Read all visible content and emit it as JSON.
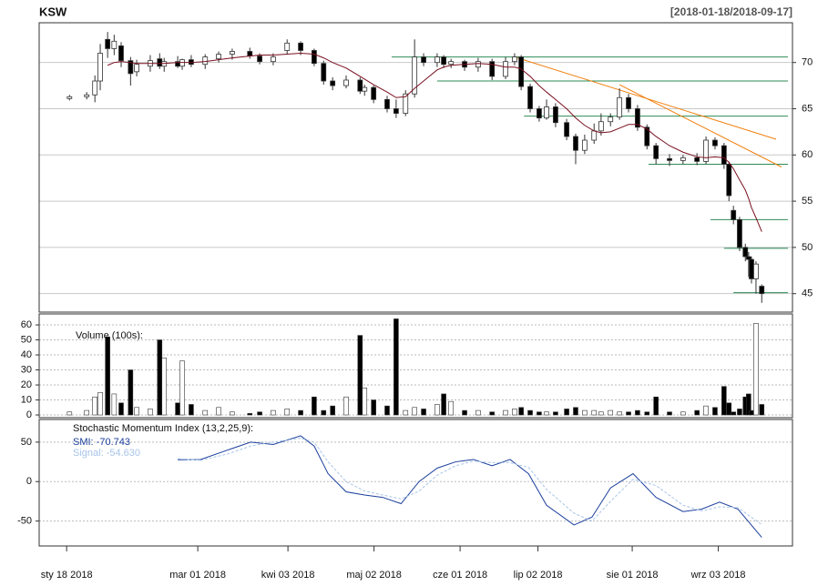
{
  "chart_data": [
    {
      "type": "candlestick",
      "title": "KSW",
      "subtitle": "[2018-01-18/2018-09-17]",
      "x": [
        0.7,
        4.9,
        6.9,
        8.2,
        10.0,
        11.6,
        13.3,
        15.6,
        17.1,
        20.4,
        22.7,
        23.8,
        27.1,
        28.2,
        30.4,
        33.8,
        37.1,
        40.4,
        44.7,
        47.1,
        50.4,
        53.8,
        57.1,
        60.4,
        62.7,
        64.9,
        68.2,
        71.6,
        72.7,
        74.9,
        78.2,
        80.4,
        82.7,
        84.9,
        87.1,
        90.4,
        92.0,
        93.8,
        97.1,
        100.4,
        103.8,
        107.1,
        109.3,
        110.9,
        113.1,
        115.3,
        117.1,
        119.3,
        122.0,
        124.2,
        126.4,
        128.7,
        130.4,
        132.7,
        134.9,
        137.1,
        139.3,
        141.6,
        143.8,
        147.1,
        150.4,
        153.8,
        156.0,
        158.2,
        160.4,
        161.6,
        162.7,
        164.2,
        165.6,
        166.4,
        167.1,
        168.2,
        169.6
      ],
      "open": [
        66.1,
        66.3,
        66.5,
        68.0,
        72.5,
        71.5,
        71.8,
        70.2,
        69.0,
        69.6,
        70.4,
        69.6,
        70.1,
        69.6,
        70.3,
        69.8,
        70.4,
        70.9,
        71.2,
        70.7,
        70.1,
        71.3,
        72.1,
        71.3,
        69.9,
        68.0,
        67.5,
        68.1,
        66.9,
        67.3,
        66.0,
        65.0,
        64.5,
        66.6,
        70.6,
        70.0,
        70.6,
        69.8,
        70.1,
        69.5,
        70.1,
        68.5,
        70.1,
        70.6,
        67.4,
        65.0,
        64.0,
        65.2,
        63.5,
        62.0,
        60.5,
        61.6,
        62.6,
        63.6,
        64.1,
        66.2,
        65.0,
        63.0,
        61.0,
        59.6,
        59.4,
        59.7,
        59.3,
        61.6,
        61.0,
        59.0,
        54.0,
        53.0,
        50.0,
        49.0,
        48.7,
        46.6,
        45.8
      ],
      "high": [
        66.5,
        66.8,
        68.6,
        72.0,
        73.3,
        73.0,
        72.2,
        70.6,
        70.3,
        70.8,
        71.0,
        70.5,
        70.7,
        70.4,
        70.8,
        70.9,
        71.2,
        71.5,
        71.6,
        71.0,
        71.0,
        72.5,
        72.3,
        71.5,
        70.2,
        68.4,
        68.6,
        68.4,
        67.6,
        67.5,
        66.4,
        66.0,
        67.0,
        72.5,
        71.0,
        71.0,
        70.8,
        70.4,
        70.3,
        70.5,
        70.4,
        70.6,
        71.0,
        70.8,
        67.7,
        65.3,
        66.0,
        65.6,
        63.9,
        62.3,
        62.2,
        63.4,
        64.5,
        64.5,
        67.2,
        66.6,
        65.4,
        63.3,
        61.3,
        60.1,
        60.0,
        60.2,
        62.0,
        61.9,
        61.3,
        59.3,
        54.5,
        53.3,
        50.4,
        49.5,
        49.0,
        48.5,
        46.0
      ],
      "low": [
        65.9,
        66.0,
        65.7,
        67.0,
        70.5,
        70.8,
        69.5,
        67.5,
        68.5,
        69.0,
        69.3,
        69.0,
        69.4,
        69.2,
        69.5,
        69.3,
        70.0,
        70.3,
        70.4,
        69.8,
        69.7,
        70.9,
        70.8,
        69.6,
        67.6,
        67.0,
        67.2,
        66.6,
        66.4,
        65.6,
        64.6,
        64.0,
        64.2,
        66.2,
        69.6,
        69.5,
        69.4,
        69.4,
        69.1,
        69.0,
        68.1,
        68.2,
        69.7,
        67.0,
        64.6,
        63.6,
        63.8,
        63.0,
        61.6,
        59.0,
        60.1,
        61.2,
        62.1,
        63.1,
        63.8,
        64.6,
        62.6,
        60.6,
        59.0,
        58.8,
        59.0,
        58.9,
        59.0,
        60.6,
        58.5,
        55.0,
        52.5,
        49.6,
        48.5,
        46.8,
        46.1,
        45.0,
        44.0
      ],
      "close": [
        66.3,
        66.5,
        68.0,
        71.0,
        71.5,
        72.3,
        70.2,
        68.8,
        69.8,
        70.2,
        69.6,
        70.1,
        69.6,
        70.3,
        69.8,
        70.6,
        70.9,
        71.2,
        70.7,
        70.1,
        70.6,
        72.1,
        71.3,
        69.9,
        68.0,
        67.5,
        68.1,
        66.9,
        67.3,
        66.0,
        65.0,
        64.5,
        66.6,
        70.6,
        70.0,
        70.6,
        69.8,
        70.1,
        69.5,
        70.1,
        68.5,
        70.1,
        70.6,
        67.4,
        65.0,
        64.0,
        65.2,
        63.5,
        62.0,
        60.5,
        61.6,
        62.6,
        63.6,
        64.1,
        66.2,
        65.0,
        63.0,
        61.0,
        59.6,
        59.4,
        59.7,
        59.3,
        61.6,
        61.0,
        59.0,
        55.6,
        53.0,
        50.0,
        49.0,
        48.7,
        46.6,
        48.2,
        45.0
      ],
      "moving_average": {
        "color": "#7a1020",
        "values": [
          null,
          null,
          null,
          null,
          69.7,
          70,
          70.1,
          70,
          69.9,
          69.9,
          69.9,
          69.9,
          70,
          70,
          70,
          70.1,
          70.3,
          70.5,
          70.7,
          70.8,
          70.8,
          70.9,
          71,
          70.9,
          70.5,
          70,
          69.4,
          68.5,
          68.2,
          67.6,
          66.8,
          66.2,
          66.3,
          67.2,
          68,
          69.2,
          69.5,
          69.7,
          69.8,
          69.9,
          69.8,
          69.5,
          69.5,
          69.3,
          68.5,
          67.5,
          66.8,
          66,
          65,
          64,
          63.2,
          62.6,
          62.4,
          62.5,
          62.9,
          63.3,
          63.3,
          62.8,
          62,
          61,
          60.3,
          59.8,
          59.7,
          59.8,
          59.7,
          59.2,
          58.5,
          57.3,
          56.2,
          55.3,
          54.3,
          53.2,
          51.7
        ]
      },
      "up_color": "#ffffff",
      "down_color": "#000000",
      "hlines": [
        {
          "y": 70.6,
          "x": [
            79.3,
            176
          ]
        },
        {
          "y": 68,
          "x": [
            90.4,
            176
          ]
        },
        {
          "y": 64.2,
          "x": [
            111.6,
            176
          ]
        },
        {
          "y": 59,
          "x": [
            142,
            176
          ]
        },
        {
          "y": 53,
          "x": [
            157.1,
            176
          ]
        },
        {
          "y": 49.9,
          "x": [
            160.4,
            176
          ]
        },
        {
          "y": 45.1,
          "x": [
            162.7,
            176
          ]
        }
      ],
      "hline_color": "#2e8b57",
      "trendlines": [
        {
          "x": [
            109.3,
            173.1
          ],
          "y": [
            70.6,
            61.7
          ]
        },
        {
          "x": [
            134.9,
            174.4
          ],
          "y": [
            67.6,
            58.7
          ]
        }
      ],
      "trendline_color": "#f08010",
      "xlim": [
        -6.7,
        177.1
      ],
      "ylim": [
        43,
        74.3
      ],
      "yticks": [
        45,
        50,
        55,
        60,
        65,
        70
      ],
      "grid": true
    },
    {
      "type": "bar",
      "title": "Volume (100s):",
      "values": [
        2,
        3,
        12,
        15,
        52,
        14,
        8,
        30,
        5,
        4,
        50,
        38,
        8,
        36,
        7,
        3,
        5,
        2,
        1,
        2,
        3,
        4,
        3,
        12,
        3,
        6,
        12,
        53,
        18,
        10,
        6,
        64,
        3,
        5,
        4,
        7,
        14,
        9,
        3,
        3,
        2,
        3,
        4,
        5,
        3,
        2,
        2,
        2,
        4,
        5,
        3,
        3,
        2,
        3,
        2,
        2,
        3,
        2,
        12,
        2,
        2,
        3,
        6,
        5,
        19,
        8,
        2,
        4,
        12,
        14,
        3,
        61,
        7
      ],
      "xlim": [
        -6.7,
        177.1
      ],
      "ylim": [
        -1.8,
        67.3
      ],
      "yticks": [
        0,
        10,
        20,
        30,
        40,
        50,
        60
      ],
      "grid": true
    },
    {
      "type": "line",
      "title": "Stochastic Momentum Index (13,2,25,9):",
      "x": [
        27.1,
        32.7,
        39.3,
        44.9,
        50.4,
        57.1,
        60.4,
        63.8,
        68.2,
        72.7,
        77.1,
        81.6,
        86,
        90.4,
        94.9,
        99.3,
        103.8,
        108.2,
        112.7,
        117.1,
        123.8,
        128.2,
        132.7,
        138.2,
        143.8,
        150.4,
        154.9,
        159.3,
        163.8,
        169.6
      ],
      "series": [
        {
          "name": "SMI: -70.743",
          "color": "#1c3f9c",
          "values": [
            27.6,
            28,
            40,
            50,
            47,
            58,
            45,
            10,
            -13,
            -17,
            -20,
            -28,
            0,
            17,
            25,
            28,
            20,
            28,
            10,
            -30,
            -55,
            -45,
            -8,
            10,
            -20,
            -38,
            -35,
            -26,
            -35,
            -70.7
          ]
        },
        {
          "name": "Signal: -54.630",
          "color": "#a8c4e8",
          "dashed": true,
          "values": [
            29,
            27,
            35,
            45,
            50,
            55,
            50,
            25,
            0,
            -12,
            -17,
            -22,
            -12,
            8,
            20,
            26,
            24,
            24,
            18,
            -10,
            -40,
            -50,
            -25,
            3,
            -5,
            -30,
            -37,
            -32,
            -33,
            -54.6
          ]
        }
      ],
      "xlim": [
        -6.7,
        177.1
      ],
      "ylim": [
        -81.6,
        78.7
      ],
      "yticks": [
        -50,
        0,
        50
      ],
      "grid": true,
      "xticks": [
        {
          "value": 0,
          "label": "sty 18 2018"
        },
        {
          "value": 32,
          "label": "mar 01 2018"
        },
        {
          "value": 54,
          "label": "kwi 03 2018"
        },
        {
          "value": 75,
          "label": "maj 02 2018"
        },
        {
          "value": 96,
          "label": "cze 01 2018"
        },
        {
          "value": 115,
          "label": "lip 02 2018"
        },
        {
          "value": 138,
          "label": "sie 01 2018"
        },
        {
          "value": 159,
          "label": "wrz 03 2018"
        }
      ]
    }
  ]
}
